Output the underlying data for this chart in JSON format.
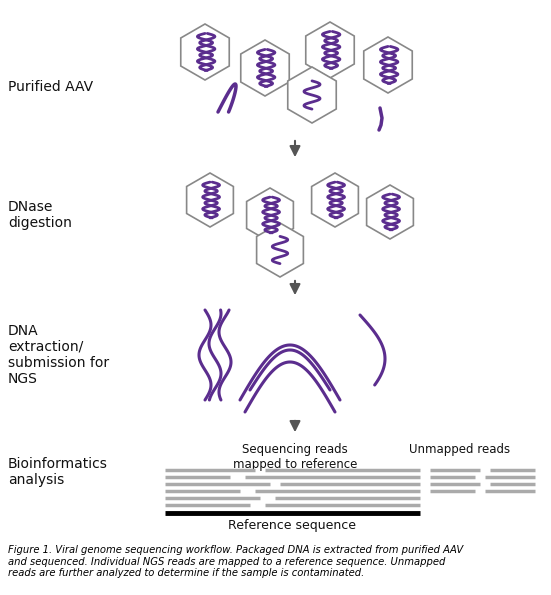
{
  "fig_width": 5.51,
  "fig_height": 5.95,
  "dpi": 100,
  "bg_color": "#ffffff",
  "purple": "#5B2D8E",
  "hex_edge": "#888888",
  "dark_gray": "#555555",
  "label_color": "#111111",
  "read_color": "#aaaaaa",
  "labels": {
    "purified_aav": "Purified AAV",
    "dnase": "DNase\ndigestion",
    "dna_extraction": "DNA\nextraction/\nsubmission for\nNGS",
    "bioinformatics": "Bioinformatics\nanalysis",
    "sequencing_reads": "Sequencing reads\nmapped to reference",
    "unmapped_reads": "Unmapped reads",
    "reference_sequence": "Reference sequence",
    "figure_caption": "Figure 1. Viral genome sequencing workflow. Packaged DNA is extracted from purified AAV\nand sequenced. Individual NGS reads are mapped to a reference sequence. Unmapped\nreads are further analyzed to determine if the sample is contaminated."
  }
}
